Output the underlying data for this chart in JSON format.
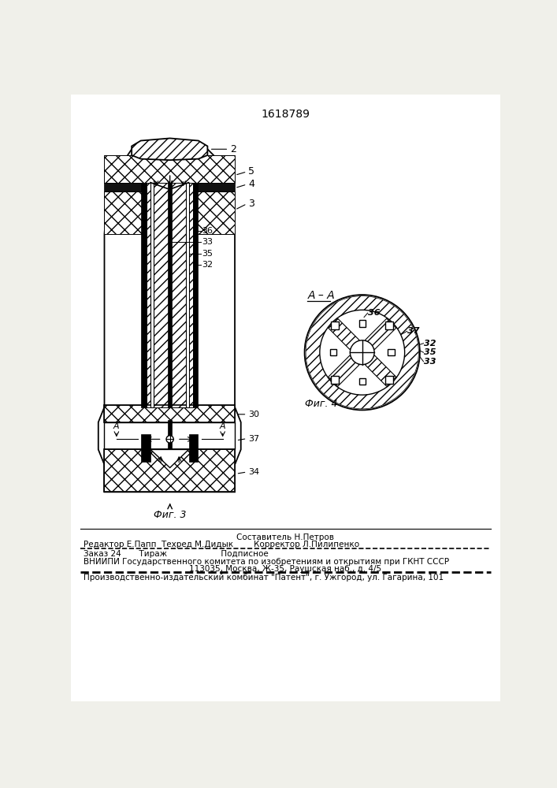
{
  "patent_number": "1618789",
  "bg_color": "#f0f0ea",
  "fig3_label": "Фиг. 3",
  "fig4_label": "Фиг. 4",
  "section_label": "A – A",
  "footer_line1_center": "Составитель Н.Петров",
  "footer_line2": "Редактор Е.Папп  Техред М.Дидык        Корректор Л.Пилипенко",
  "footer_line3": "Заказ 24       Тираж                     Подписное",
  "footer_line4": "ВНИИПИ Государственного комитета по изобретениям и открытиям при ГКНТ СССР",
  "footer_line5": "113035, Москва, Ж-35, Раушская наб., д. 4/5",
  "footer_line6": "Производственно-издательский комбинат \"Патент\", г. Ужгород, ул. Гагарина, 101"
}
